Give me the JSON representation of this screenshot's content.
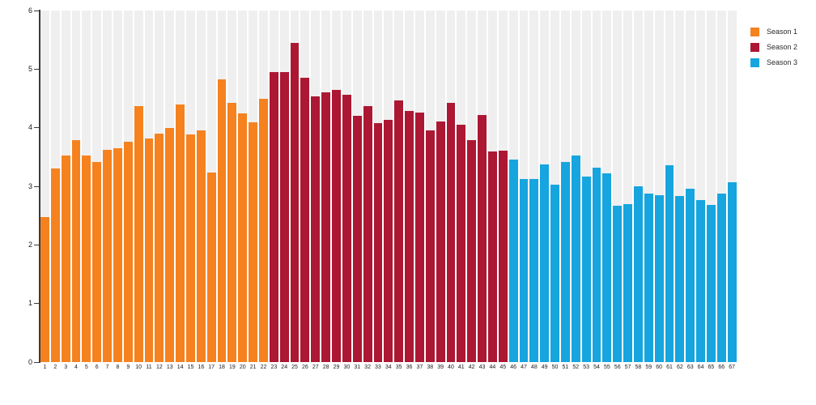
{
  "page": {
    "background": "#ffffff"
  },
  "chart_data": {
    "type": "bar",
    "title": "",
    "xlabel": "",
    "ylabel": "",
    "ylim": [
      0,
      6
    ],
    "y_ticks": [
      0,
      1,
      2,
      3,
      4,
      5,
      6
    ],
    "y_tick_labels": [
      "0",
      "1",
      "2",
      "3",
      "4",
      "5",
      "6"
    ],
    "grid": "none",
    "background_column_color": "#efefef",
    "legend_position": "top-right",
    "x_labels": [
      "1",
      "2",
      "3",
      "4",
      "5",
      "6",
      "7",
      "8",
      "9",
      "10",
      "11",
      "12",
      "13",
      "14",
      "15",
      "16",
      "17",
      "18",
      "19",
      "20",
      "21",
      "22",
      "23",
      "24",
      "25",
      "26",
      "27",
      "28",
      "29",
      "30",
      "31",
      "32",
      "33",
      "34",
      "35",
      "36",
      "37",
      "38",
      "39",
      "40",
      "41",
      "42",
      "43",
      "44",
      "45",
      "46",
      "47",
      "48",
      "49",
      "50",
      "51",
      "52",
      "53",
      "54",
      "55",
      "56",
      "57",
      "58",
      "59",
      "60",
      "61",
      "62",
      "63",
      "64",
      "65",
      "66",
      "67"
    ],
    "series": [
      {
        "name": "Season 1",
        "color": "#f5821f",
        "first_episode": 1,
        "values": [
          2.47,
          3.31,
          3.53,
          3.79,
          3.53,
          3.41,
          3.62,
          3.65,
          3.76,
          4.37,
          3.82,
          3.9,
          4.0,
          4.4,
          3.89,
          3.96,
          3.24,
          4.82,
          4.42,
          4.25,
          4.09,
          4.5
        ]
      },
      {
        "name": "Season 2",
        "color": "#ac1733",
        "first_episode": 23,
        "values": [
          4.95,
          4.95,
          5.45,
          4.85,
          4.53,
          4.61,
          4.64,
          4.56,
          4.2,
          4.37,
          4.08,
          4.14,
          4.47,
          4.28,
          4.26,
          3.96,
          4.1,
          4.43,
          4.05,
          3.79,
          4.22,
          3.6,
          3.61
        ]
      },
      {
        "name": "Season 3",
        "color": "#16a5de",
        "first_episode": 46,
        "values": [
          3.45,
          3.12,
          3.12,
          3.37,
          3.03,
          3.42,
          3.53,
          3.17,
          3.32,
          3.22,
          2.67,
          2.7,
          3.0,
          2.88,
          2.85,
          3.36,
          2.83,
          2.96,
          2.76,
          2.68,
          2.87,
          3.07
        ]
      }
    ]
  }
}
